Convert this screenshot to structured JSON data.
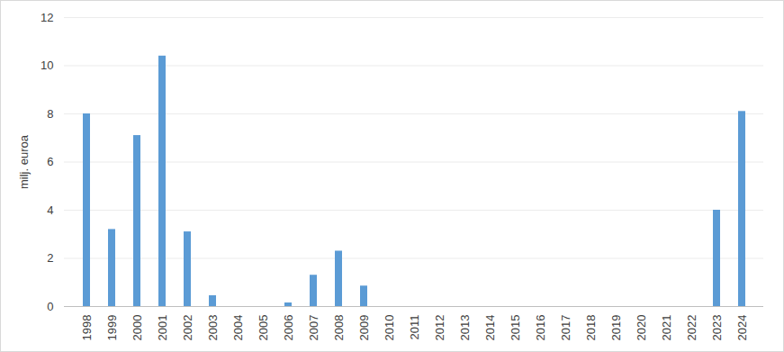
{
  "chart_data": {
    "type": "bar",
    "y_label": "milj. euroa",
    "categories": [
      "1998",
      "1999",
      "2000",
      "2001",
      "2002",
      "2003",
      "2004",
      "2005",
      "2006",
      "2007",
      "2008",
      "2009",
      "2010",
      "2011",
      "2012",
      "2013",
      "2014",
      "2015",
      "2016",
      "2017",
      "2018",
      "2019",
      "2020",
      "2021",
      "2022",
      "2023",
      "2024"
    ],
    "values": [
      8.0,
      3.2,
      7.1,
      10.4,
      3.1,
      0.45,
      0,
      0,
      0.15,
      1.3,
      2.3,
      0.85,
      0,
      0,
      0,
      0,
      0,
      0,
      0,
      0,
      0,
      0,
      0,
      0,
      0,
      4.0,
      8.1
    ],
    "color": "#5b9bd5",
    "ylim": [
      0,
      12
    ],
    "yticks": [
      0,
      2,
      4,
      6,
      8,
      10,
      12
    ],
    "grid": true
  }
}
